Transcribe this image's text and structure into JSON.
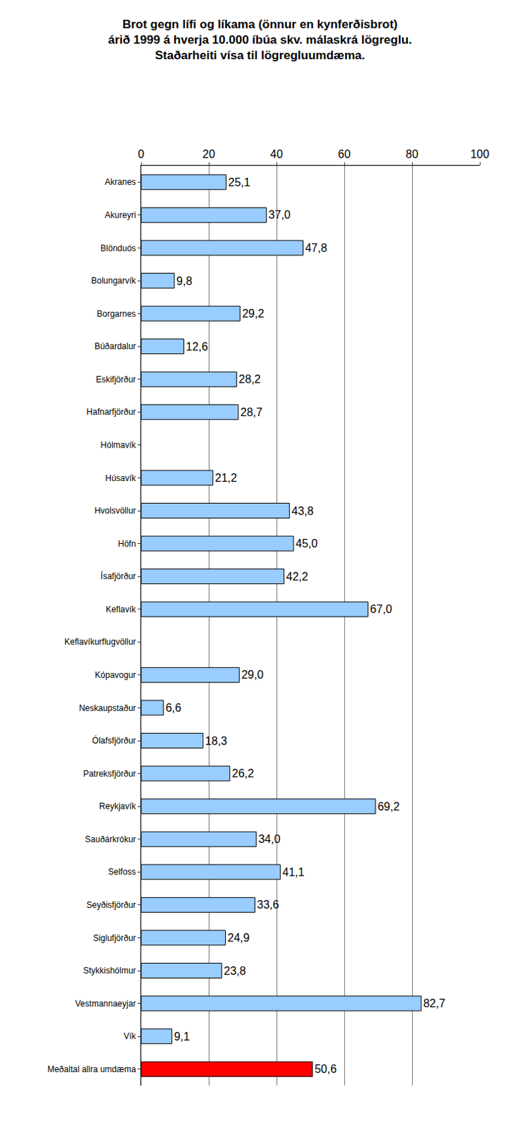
{
  "chart_data": {
    "type": "bar",
    "orientation": "horizontal",
    "title": "Brot gegn lífi og líkama (önnur en kynferðisbrot)\nárið 1999 á hverja 10.000 íbúa skv. málaskrá lögreglu.\nStaðarheiti vísa til lögregluumdæma.",
    "categories": [
      "Akranes",
      "Akureyri",
      "Blönduós",
      "Bolungarvík",
      "Borgarnes",
      "Búðardalur",
      "Eskifjörður",
      "Hafnarfjörður",
      "Hólmavík",
      "Húsavík",
      "Hvolsvöllur",
      "Höfn",
      "Ísafjörður",
      "Keflavík",
      "Keflavíkurflugvöllur",
      "Kópavogur",
      "Neskaupstaður",
      "Ólafsfjörður",
      "Patreksfjörður",
      "Reykjavík",
      "Sauðárkrókur",
      "Selfoss",
      "Seyðisfjörður",
      "Siglufjörður",
      "Stykkishólmur",
      "Vestmannaeyjar",
      "Vík",
      "Meðaltal allra umdæma"
    ],
    "values": [
      25.1,
      37.0,
      47.8,
      9.8,
      29.2,
      12.6,
      28.2,
      28.7,
      null,
      21.2,
      43.8,
      45.0,
      42.2,
      67.0,
      null,
      29.0,
      6.6,
      18.3,
      26.2,
      69.2,
      34.0,
      41.1,
      33.6,
      24.9,
      23.8,
      82.7,
      9.1,
      50.6
    ],
    "value_labels": [
      "25,1",
      "37,0",
      "47,8",
      "9,8",
      "29,2",
      "12,6",
      "28,2",
      "28,7",
      null,
      "21,2",
      "43,8",
      "45,0",
      "42,2",
      "67,0",
      null,
      "29,0",
      "6,6",
      "18,3",
      "26,2",
      "69,2",
      "34,0",
      "41,1",
      "33,6",
      "24,9",
      "23,8",
      "82,7",
      "9,1",
      "50,6"
    ],
    "colors": [
      "#99ccff",
      "#99ccff",
      "#99ccff",
      "#99ccff",
      "#99ccff",
      "#99ccff",
      "#99ccff",
      "#99ccff",
      "#99ccff",
      "#99ccff",
      "#99ccff",
      "#99ccff",
      "#99ccff",
      "#99ccff",
      "#99ccff",
      "#99ccff",
      "#99ccff",
      "#99ccff",
      "#99ccff",
      "#99ccff",
      "#99ccff",
      "#99ccff",
      "#99ccff",
      "#99ccff",
      "#99ccff",
      "#99ccff",
      "#99ccff",
      "#ff0000"
    ],
    "xlim": [
      0,
      100
    ],
    "xticks": [
      0,
      20,
      40,
      60,
      80,
      100
    ],
    "grid": true,
    "data_labels": true
  }
}
